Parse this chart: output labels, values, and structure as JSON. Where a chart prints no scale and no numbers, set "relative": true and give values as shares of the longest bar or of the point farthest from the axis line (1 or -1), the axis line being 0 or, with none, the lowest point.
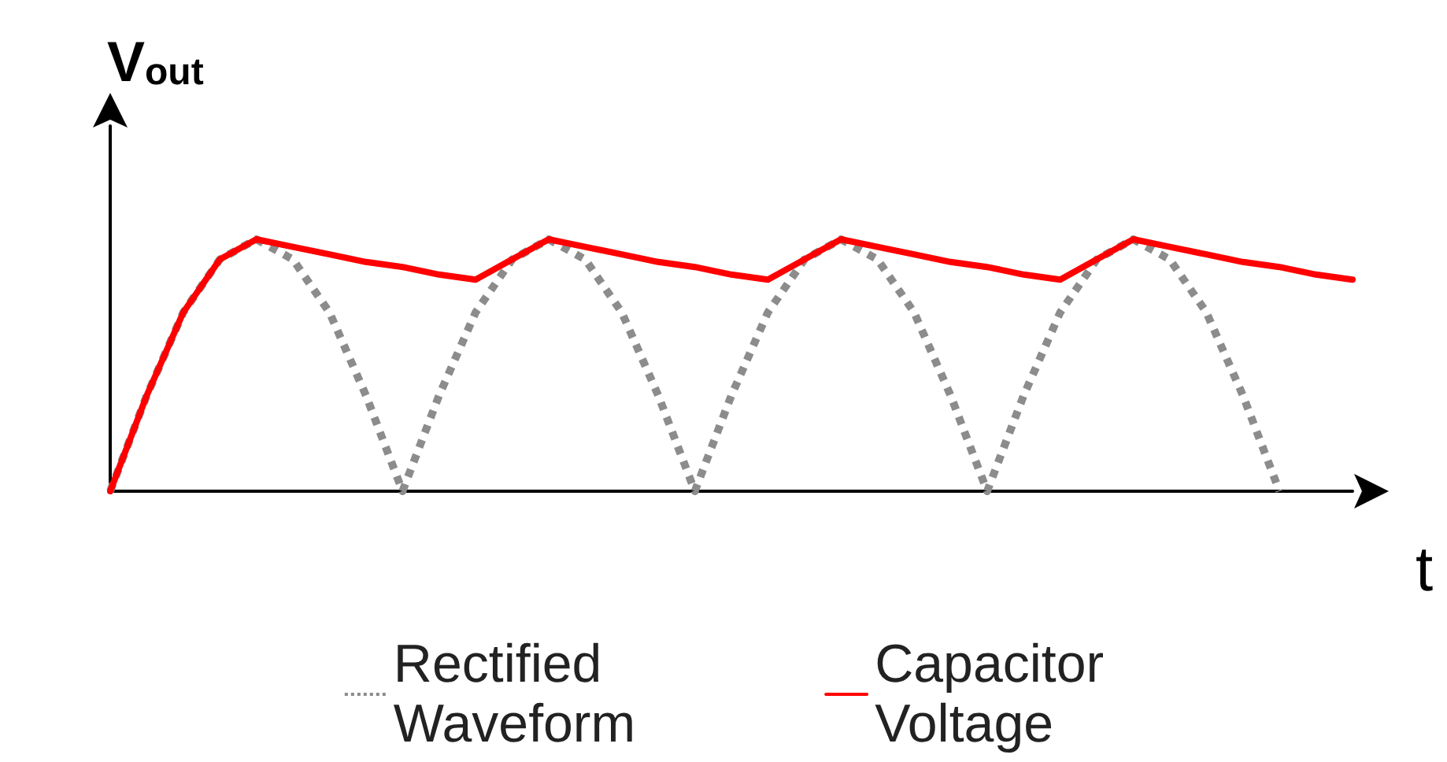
{
  "chart_data": {
    "type": "line",
    "relative": true,
    "xlabel": "t",
    "ylabel": "V$_{out}$",
    "categories": [
      null,
      null,
      null,
      null,
      null,
      null,
      null,
      null,
      null,
      null,
      null,
      null,
      null,
      null,
      null,
      null,
      null,
      null,
      null,
      null,
      null,
      null,
      null,
      null,
      null,
      null,
      null,
      null,
      null,
      null,
      null,
      null,
      null,
      null,
      null
    ],
    "series": [
      {
        "name": "Rectified Waveform",
        "color": "#8c8c8c",
        "line_style": "dotted",
        "values": [
          0,
          0.38,
          0.71,
          0.92,
          1,
          0.92,
          0.71,
          0.38,
          0,
          0.38,
          0.71,
          0.92,
          1,
          0.92,
          0.71,
          0.38,
          0,
          0.38,
          0.71,
          0.92,
          1,
          0.92,
          0.71,
          0.38,
          0,
          0.38,
          0.71,
          0.92,
          1,
          0.92,
          0.71,
          0.38,
          0,
          null,
          null
        ]
      },
      {
        "name": "Capacitor Voltage",
        "color": "#ff0000",
        "line_style": "solid",
        "values": [
          0,
          0.38,
          0.71,
          0.92,
          1,
          0.97,
          0.94,
          0.91,
          0.89,
          0.86,
          0.84,
          0.92,
          1,
          0.97,
          0.94,
          0.91,
          0.89,
          0.86,
          0.84,
          0.92,
          1,
          0.97,
          0.94,
          0.91,
          0.89,
          0.86,
          0.84,
          0.92,
          1,
          0.97,
          0.94,
          0.91,
          0.89,
          0.86,
          0.84
        ]
      }
    ],
    "legend": "bottom",
    "grid": false,
    "marker": "none"
  }
}
